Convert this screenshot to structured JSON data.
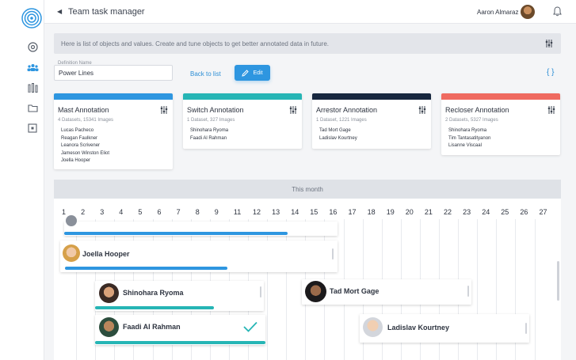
{
  "header": {
    "title": "Team task manager",
    "user_name": "Aaron Almaraz"
  },
  "info": {
    "text": "Here is list of objects and values. Create and tune objects to get better annotated data in future."
  },
  "definition": {
    "label": "Definition Name",
    "value": "Power Lines",
    "back_link": "Back to list",
    "edit_label": "Edit",
    "code_icon": "{ }"
  },
  "cards": [
    {
      "title": "Mast Annotation",
      "meta": "4 Datasets, 15341 Images",
      "color": "#2e96e0",
      "people": [
        "Lucas Pacheco",
        "Reagan Faulkner",
        "Leanora Scrivener",
        "Jameson Winston Eliot",
        "Joella Hooper"
      ]
    },
    {
      "title": "Switch Annotation",
      "meta": "1 Dataset, 327 Images",
      "color": "#26b5b5",
      "people": [
        "Shinohara Ryoma",
        "Faadi Al Rahman"
      ]
    },
    {
      "title": "Arrestor Annotation",
      "meta": "1 Dataset, 1221 Images",
      "color": "#17273f",
      "people": [
        "Tad Mort Gage",
        "Ladislav Kourtney"
      ]
    },
    {
      "title": "Recloser Annotation",
      "meta": "2 Datasets, 5327 Images",
      "color": "#ef6a60",
      "people": [
        "Shinohara Ryoma",
        "Tim Tantasatityanon",
        "Lisanne Viscaal"
      ]
    }
  ],
  "calendar": {
    "title": "This month",
    "days": [
      "1",
      "2",
      "3",
      "4",
      "5",
      "6",
      "7",
      "8",
      "9",
      "11",
      "12",
      "13",
      "14",
      "15",
      "16",
      "17",
      "18",
      "19",
      "20",
      "21",
      "22",
      "23",
      "24",
      "25",
      "26",
      "27"
    ]
  },
  "tasks": [
    {
      "name": "Joella Hooper",
      "progress_color": "#2e96e0"
    },
    {
      "name": "Shinohara Ryoma",
      "progress_color": "#26b5b5"
    },
    {
      "name": "Faadi Al Rahman",
      "progress_color": "#26b5b5",
      "status": "check-icon"
    },
    {
      "name": "Tad Mort Gage"
    },
    {
      "name": "Ladislav Kourtney"
    }
  ]
}
